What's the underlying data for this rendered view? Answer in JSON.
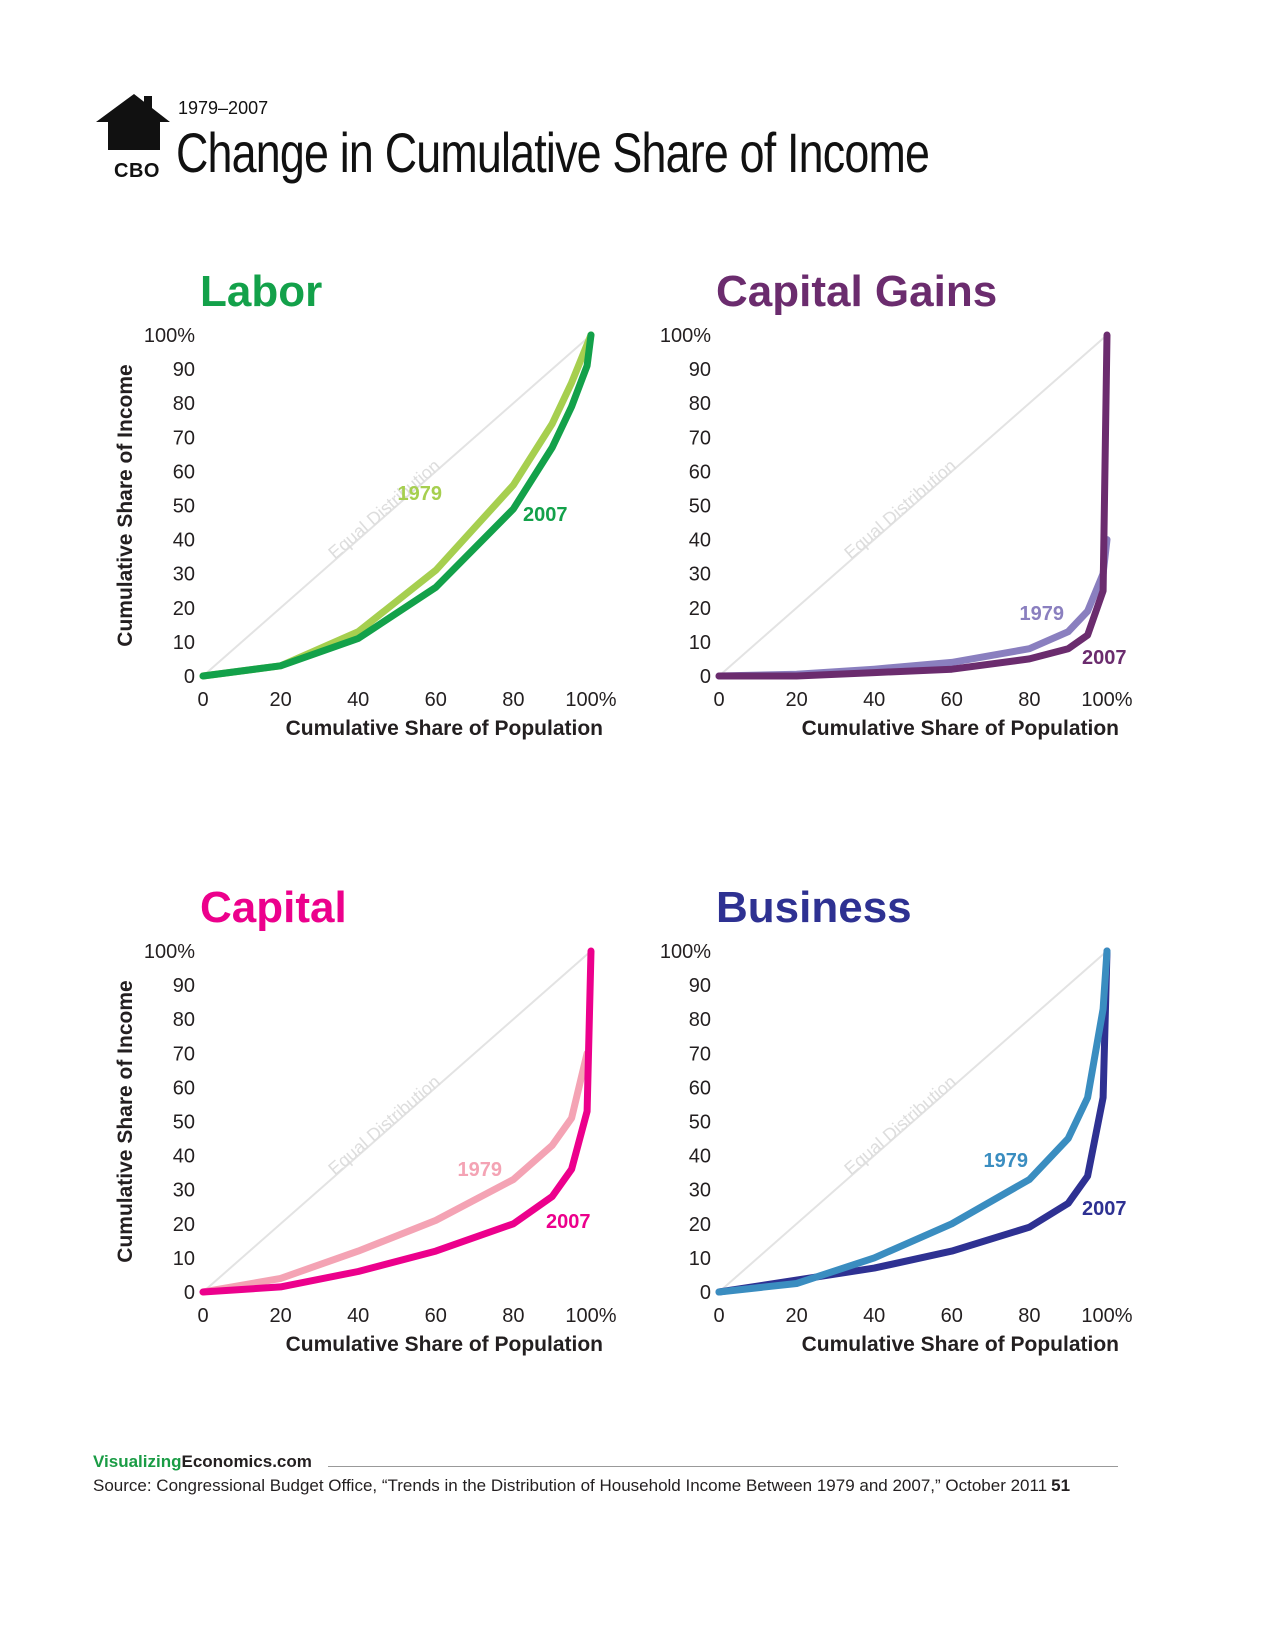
{
  "header": {
    "logo_text": "CBO",
    "date_range": "1979–2007",
    "title": "Change in Cumulative Share of Income"
  },
  "axis_labels": {
    "y": "Cumulative Share of Income",
    "x": "Cumulative Share of Population",
    "equal_line": "Equal Distribution"
  },
  "ticks": [
    "0",
    "10",
    "20",
    "30",
    "40",
    "50",
    "60",
    "70",
    "80",
    "90",
    "100%"
  ],
  "xticks": [
    "0",
    "20",
    "40",
    "60",
    "80",
    "100%"
  ],
  "footer": {
    "brand_a": "Visualizing",
    "brand_b": "Economics.com",
    "source": "Source: Congressional Budget Office, “Trends in the Distribution of Household Income Between 1979 and 2007,” October 2011",
    "page": "51"
  },
  "chart_data": [
    {
      "type": "line",
      "title": "Labor",
      "title_color": "#13a14a",
      "xlabel": "Cumulative Share of Population",
      "ylabel": "Cumulative Share of Income",
      "xlim": [
        0,
        100
      ],
      "ylim": [
        0,
        100
      ],
      "series": [
        {
          "name": "1979",
          "color": "#a6cf4f",
          "x": [
            0,
            20,
            40,
            60,
            80,
            90,
            95,
            100
          ],
          "y": [
            0,
            3,
            13,
            31,
            56,
            74,
            86,
            100
          ]
        },
        {
          "name": "2007",
          "color": "#13a14a",
          "x": [
            0,
            20,
            40,
            60,
            80,
            90,
            95,
            99,
            100
          ],
          "y": [
            0,
            3,
            11,
            26,
            49,
            67,
            79,
            91,
            100
          ]
        }
      ],
      "label_order": [
        "1979",
        "2007"
      ]
    },
    {
      "type": "line",
      "title": "Capital Gains",
      "title_color": "#6b2c6e",
      "xlabel": "Cumulative Share of Population",
      "ylabel": "",
      "xlim": [
        0,
        100
      ],
      "ylim": [
        0,
        100
      ],
      "series": [
        {
          "name": "1979",
          "color": "#8a7fbf",
          "x": [
            0,
            20,
            40,
            60,
            80,
            90,
            95,
            99,
            100
          ],
          "y": [
            0,
            0.5,
            2,
            4,
            8,
            13,
            19,
            30,
            40
          ]
        },
        {
          "name": "2007",
          "color": "#6b2c6e",
          "x": [
            0,
            20,
            40,
            60,
            80,
            90,
            95,
            99,
            100
          ],
          "y": [
            0,
            0,
            1,
            2,
            5,
            8,
            12,
            25,
            100
          ]
        }
      ],
      "label_order": [
        "1979",
        "2007"
      ]
    },
    {
      "type": "line",
      "title": "Capital",
      "title_color": "#ec008c",
      "xlabel": "Cumulative Share of Population",
      "ylabel": "Cumulative Share of Income",
      "xlim": [
        0,
        100
      ],
      "ylim": [
        0,
        100
      ],
      "series": [
        {
          "name": "1979",
          "color": "#f4a3b4",
          "x": [
            0,
            20,
            40,
            60,
            80,
            90,
            95,
            99
          ],
          "y": [
            0,
            4,
            12,
            21,
            33,
            43,
            51,
            70
          ]
        },
        {
          "name": "2007",
          "color": "#ec008c",
          "x": [
            0,
            20,
            40,
            60,
            80,
            90,
            95,
            99,
            100
          ],
          "y": [
            0,
            1.5,
            6,
            12,
            20,
            28,
            36,
            53,
            100
          ]
        }
      ],
      "label_order": [
        "1979",
        "2007"
      ]
    },
    {
      "type": "line",
      "title": "Business",
      "title_color": "#2e3192",
      "xlabel": "Cumulative Share of Population",
      "ylabel": "",
      "xlim": [
        0,
        100
      ],
      "ylim": [
        0,
        100
      ],
      "series": [
        {
          "name": "2007",
          "color": "#2e3192",
          "x": [
            0,
            20,
            40,
            60,
            80,
            90,
            95,
            99,
            100
          ],
          "y": [
            0,
            3.5,
            7,
            12,
            19,
            26,
            34,
            57,
            100
          ]
        },
        {
          "name": "1979",
          "color": "#3a8dc0",
          "x": [
            0,
            20,
            40,
            60,
            80,
            90,
            95,
            99,
            100
          ],
          "y": [
            0,
            2.5,
            10,
            20,
            33,
            45,
            57,
            83,
            100
          ]
        }
      ],
      "label_order": [
        "1979",
        "2007"
      ]
    }
  ]
}
